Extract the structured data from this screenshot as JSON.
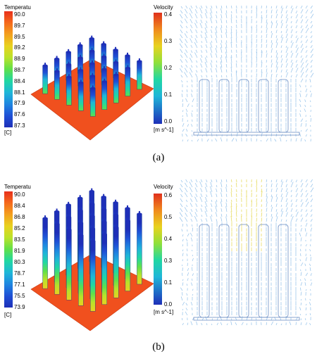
{
  "panels": [
    {
      "id": "a",
      "caption": "(a)",
      "temp_legend": {
        "title": "Temperatu",
        "unit": "[C]",
        "ticks": [
          "90.0",
          "89.7",
          "89.5",
          "89.2",
          "88.9",
          "88.7",
          "88.4",
          "88.1",
          "87.9",
          "87.6",
          "87.3"
        ]
      },
      "vel_legend": {
        "title": "Velocity",
        "unit": "[m s^-1]",
        "ticks": [
          "0.4",
          "0.3",
          "0.2",
          "0.1",
          "0.0"
        ]
      }
    },
    {
      "id": "b",
      "caption": "(b)",
      "temp_legend": {
        "title": "Temperatu",
        "unit": "[C]",
        "ticks": [
          "90.0",
          "88.4",
          "86.8",
          "85.2",
          "83.5",
          "81.9",
          "80.3",
          "78.7",
          "77.1",
          "75.5",
          "73.9"
        ]
      },
      "vel_legend": {
        "title": "Velocity",
        "unit": "[m s^-1]",
        "ticks": [
          "0.6",
          "0.5",
          "0.4",
          "0.3",
          "0.1",
          "0.0"
        ]
      }
    }
  ],
  "colors": {
    "heatsink_base": "#f0501e",
    "colormap": [
      "#e8301c",
      "#f56a1c",
      "#f3a11e",
      "#e8d21f",
      "#b9e22a",
      "#5fe04a",
      "#20d7a3",
      "#1fb6d8",
      "#1f86e0",
      "#1f50d6",
      "#1e2fb8"
    ],
    "vector_low": "#7fb6e6",
    "vector_high": "#e0d030"
  }
}
